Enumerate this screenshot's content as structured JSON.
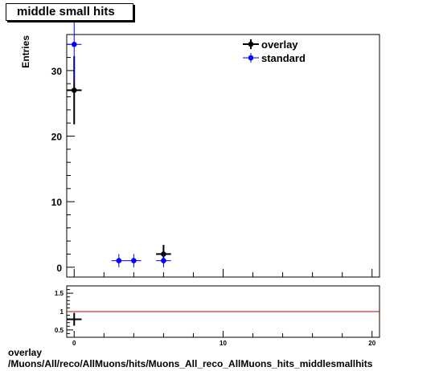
{
  "plot_title": "middle small hits",
  "footer": {
    "line1": "overlay",
    "line2": "/Muons/All/reco/AllMuons/hits/Muons_All_reco_AllMuons_hits_middlesmallhits"
  },
  "chart_data": [
    {
      "type": "scatter",
      "title": "middle small hits",
      "xlabel": "",
      "ylabel": "Entries",
      "xlim": [
        -0.5,
        20.5
      ],
      "ylim": [
        -1.5,
        35.5
      ],
      "y_ticks": [
        0,
        10,
        20,
        30
      ],
      "legend_position": "top-right",
      "grid": false,
      "series": [
        {
          "name": "overlay",
          "color": "#000000",
          "points": [
            {
              "x": 0,
              "y": 27,
              "yerr": 5.2
            },
            {
              "x": 6,
              "y": 2,
              "yerr": 1.41
            }
          ]
        },
        {
          "name": "standard",
          "color": "#0000ff",
          "points": [
            {
              "x": 0,
              "y": 34,
              "yerr": 5.83
            },
            {
              "x": 3,
              "y": 1,
              "yerr": 1
            },
            {
              "x": 4,
              "y": 1,
              "yerr": 1
            },
            {
              "x": 6,
              "y": 1,
              "yerr": 1
            }
          ]
        }
      ]
    },
    {
      "type": "scatter",
      "title": "",
      "xlim": [
        -0.5,
        20.5
      ],
      "ylim": [
        0.3,
        1.7
      ],
      "x_ticks": [
        0,
        10,
        20
      ],
      "y_ticks": [
        0.5,
        1,
        1.5
      ],
      "reference_line": {
        "y": 1,
        "color": "#cc0000"
      },
      "series": [
        {
          "color": "#000000",
          "points": [
            {
              "x": 0,
              "y": 0.79
            }
          ]
        }
      ]
    }
  ]
}
